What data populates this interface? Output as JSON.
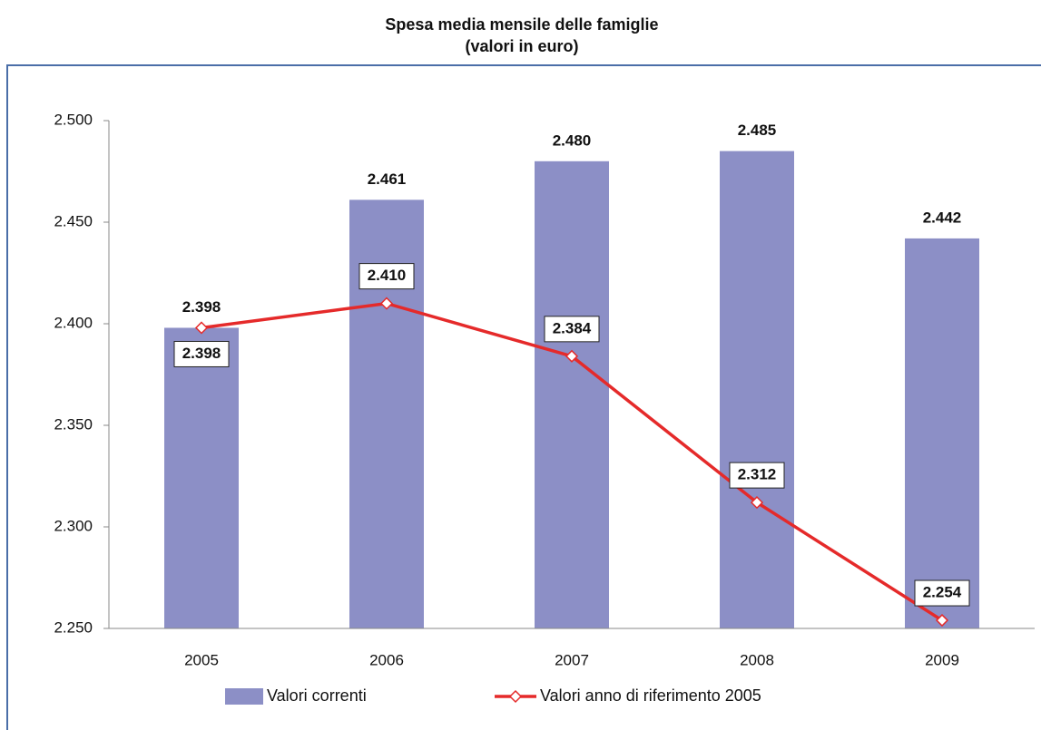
{
  "chart_data": {
    "type": "bar",
    "title": "Spesa media mensile delle famiglie",
    "subtitle": "(valori in euro)",
    "categories": [
      "2005",
      "2006",
      "2007",
      "2008",
      "2009"
    ],
    "series": [
      {
        "name": "Valori correnti",
        "type": "bar",
        "color": "#8c8fc6",
        "values": [
          2398,
          2461,
          2480,
          2485,
          2442
        ],
        "value_labels": [
          "2.398",
          "2.461",
          "2.480",
          "2.485",
          "2.442"
        ]
      },
      {
        "name": "Valori anno di riferimento 2005",
        "type": "line",
        "color": "#e52a2a",
        "values": [
          2398,
          2410,
          2384,
          2312,
          2254
        ],
        "value_labels": [
          "2.398",
          "2.410",
          "2.384",
          "2.312",
          "2.254"
        ]
      }
    ],
    "ylim": [
      2250,
      2500
    ],
    "yticks": [
      {
        "value": 2250,
        "label": "2.250"
      },
      {
        "value": 2300,
        "label": "2.300"
      },
      {
        "value": 2350,
        "label": "2.350"
      },
      {
        "value": 2400,
        "label": "2.400"
      },
      {
        "value": 2450,
        "label": "2.450"
      },
      {
        "value": 2500,
        "label": "2.500"
      }
    ],
    "grid": false,
    "legend": "bottom"
  }
}
